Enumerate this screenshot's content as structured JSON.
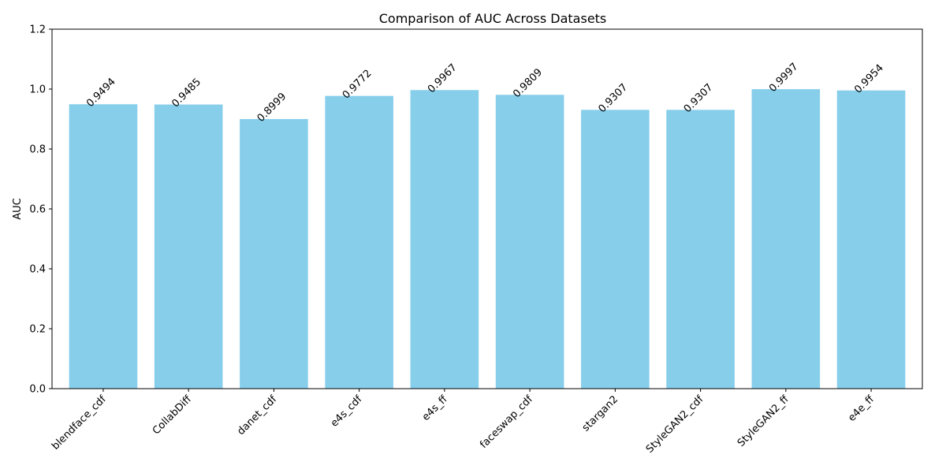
{
  "chart_data": {
    "type": "bar",
    "title": "Comparison of AUC Across Datasets",
    "xlabel": "",
    "ylabel": "AUC",
    "ylim": [
      0,
      1.2
    ],
    "yticks": [
      "0.0",
      "0.2",
      "0.4",
      "0.6",
      "0.8",
      "1.0",
      "1.2"
    ],
    "grid": false,
    "bar_color": "#87CEEB",
    "categories": [
      "blendface_cdf",
      "CollabDiff",
      "danet_cdf",
      "e4s_cdf",
      "e4s_ff",
      "faceswap_cdf",
      "stargan2",
      "StyleGAN2_cdf",
      "StyleGAN2_ff",
      "e4e_ff"
    ],
    "values": [
      0.9494,
      0.9485,
      0.8999,
      0.9772,
      0.9967,
      0.9809,
      0.9307,
      0.9307,
      0.9997,
      0.9954
    ],
    "value_labels": [
      "0.9494",
      "0.9485",
      "0.8999",
      "0.9772",
      "0.9967",
      "0.9809",
      "0.9307",
      "0.9307",
      "0.9997",
      "0.9954"
    ]
  }
}
